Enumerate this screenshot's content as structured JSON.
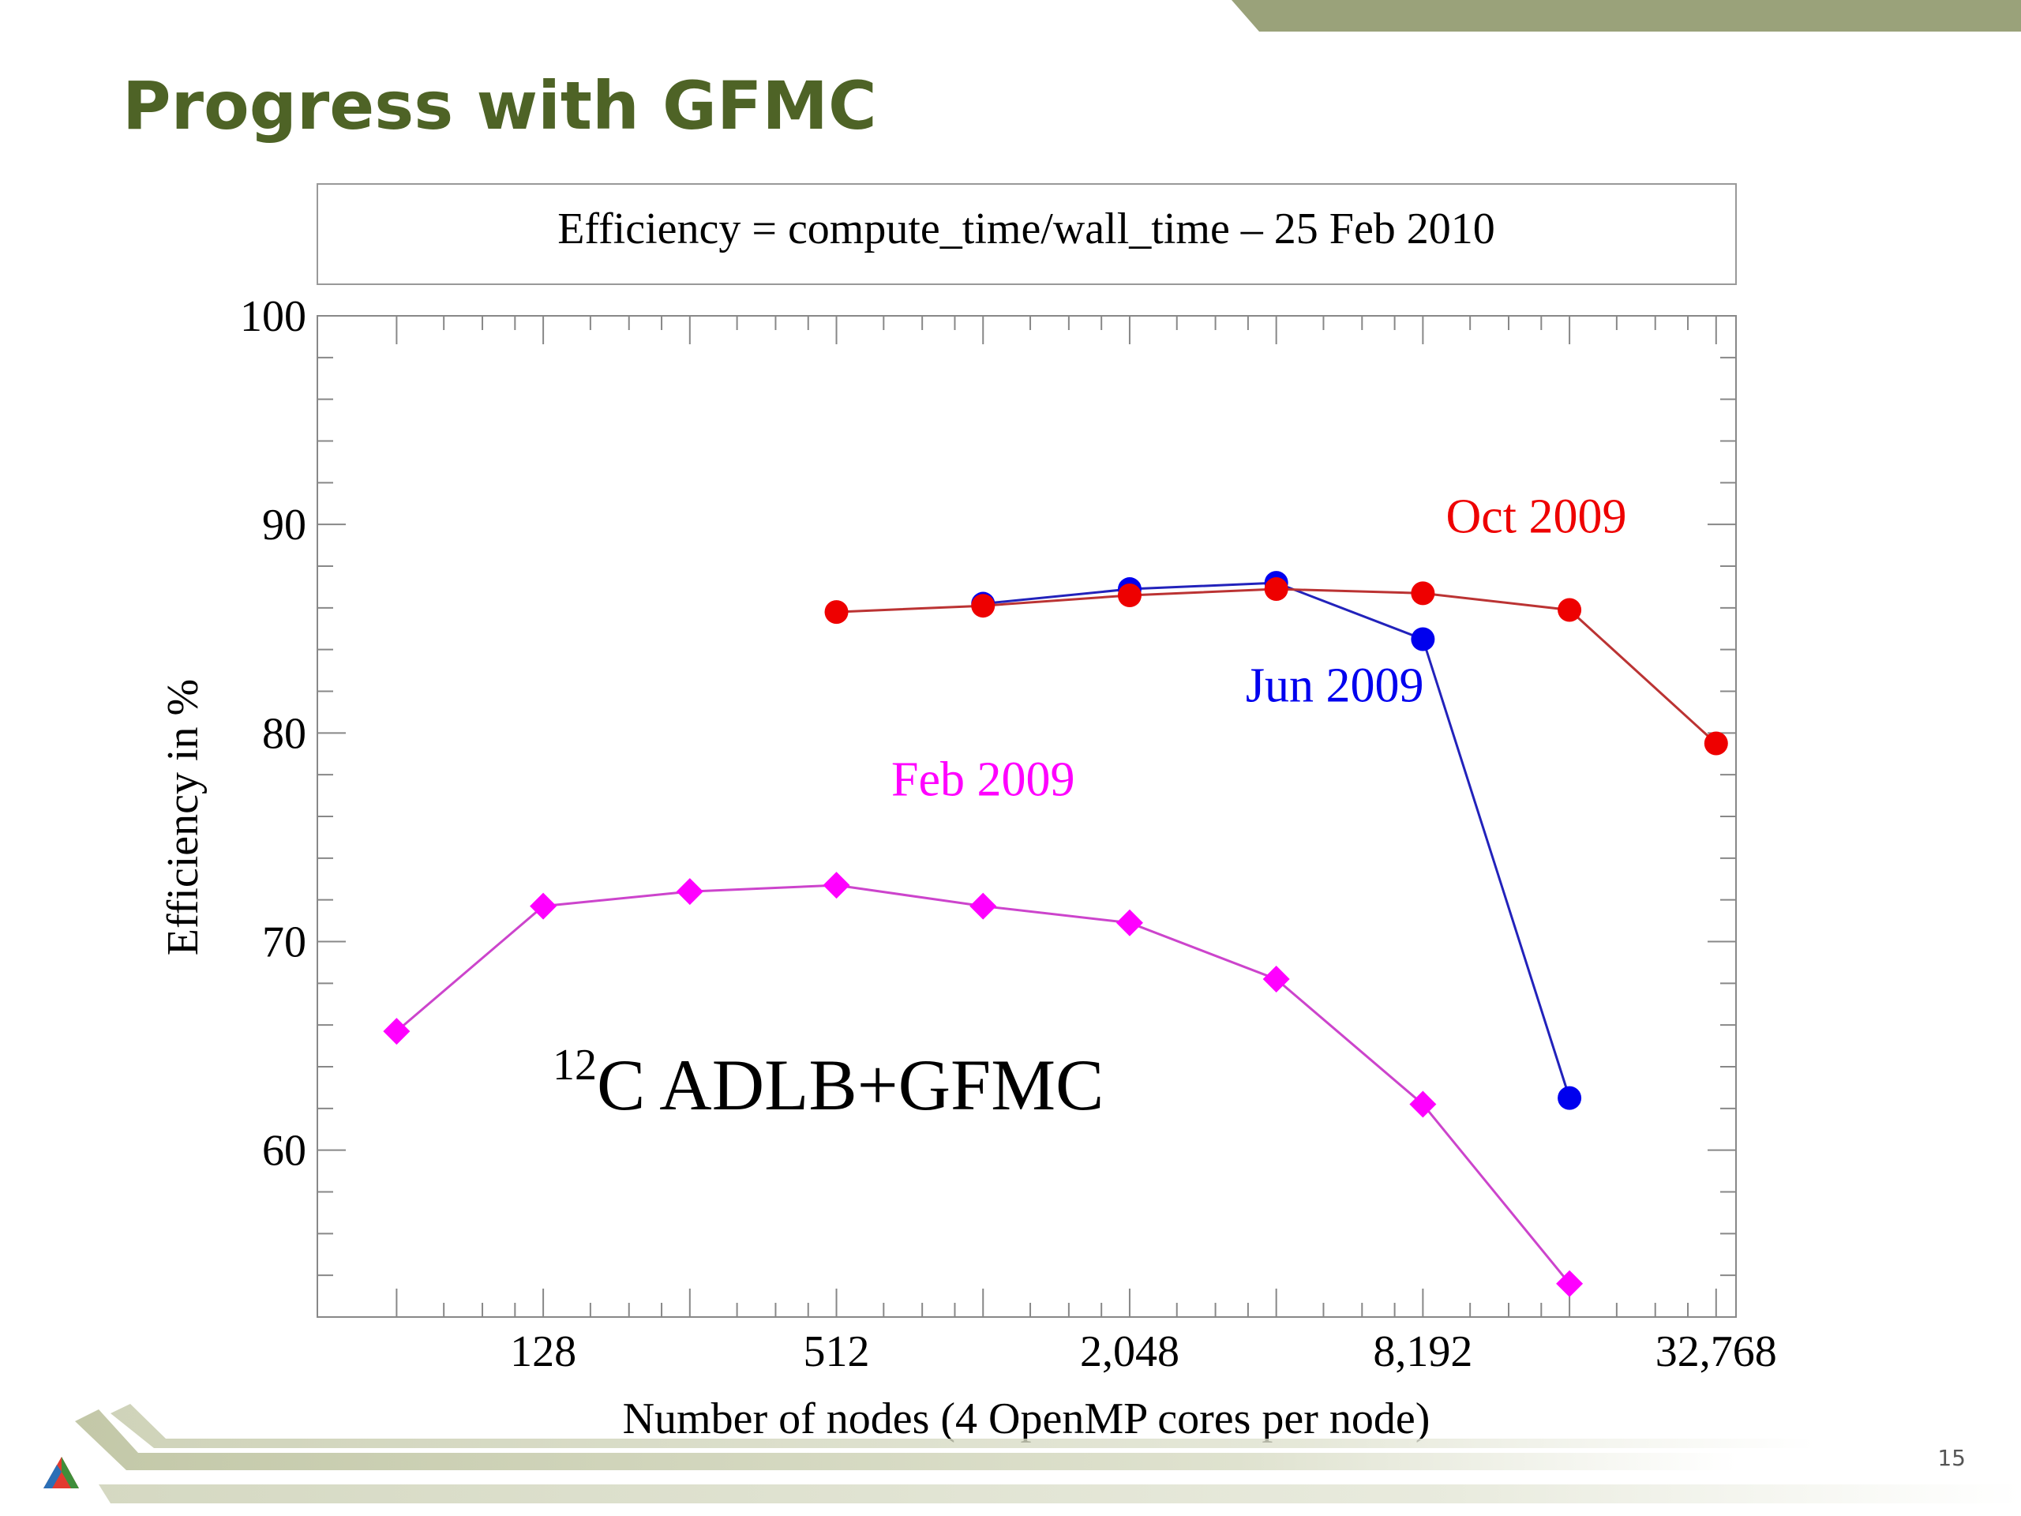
{
  "slide": {
    "title": "Progress with GFMC",
    "page_number": "15",
    "accent_color": "#4e6326",
    "band_color": "#9aa27a"
  },
  "chart_data": {
    "type": "line",
    "title": "Efficiency = compute_time/wall_time – 25 Feb 2010",
    "xlabel": "Number of nodes (4 OpenMP cores per node)",
    "ylabel": "Efficiency in %",
    "x_scale": "log2",
    "xlim": [
      44,
      36000
    ],
    "ylim": [
      52,
      100
    ],
    "x_ticks": [
      128,
      512,
      2048,
      8192,
      32768
    ],
    "x_tick_labels": [
      "128",
      "512",
      "2,048",
      "8,192",
      "32,768"
    ],
    "y_ticks": [
      60,
      70,
      80,
      90,
      100
    ],
    "y_tick_labels": [
      "60",
      "70",
      "80",
      "90",
      "100"
    ],
    "grid": false,
    "annotation": {
      "superscript": "12",
      "text": "C ADLB+GFMC"
    },
    "series": [
      {
        "name": "Feb 2009",
        "color": "#cc44cc",
        "marker_color": "#ff00ff",
        "marker": "diamond",
        "x": [
          64,
          128,
          256,
          512,
          1024,
          2048,
          4096,
          8192,
          16384
        ],
        "y": [
          65.7,
          71.7,
          72.4,
          72.7,
          71.7,
          70.9,
          68.2,
          62.2,
          53.6
        ]
      },
      {
        "name": "Jun 2009",
        "color": "#2222bb",
        "marker_color": "#0000ee",
        "marker": "circle",
        "x": [
          1024,
          2048,
          4096,
          8192,
          16384
        ],
        "y": [
          86.2,
          86.9,
          87.2,
          84.5,
          62.5
        ]
      },
      {
        "name": "Oct 2009",
        "color": "#bb3333",
        "marker_color": "#ee0000",
        "marker": "circle",
        "x": [
          512,
          1024,
          2048,
          4096,
          8192,
          16384,
          32768
        ],
        "y": [
          85.8,
          86.1,
          86.6,
          86.9,
          86.7,
          85.9,
          79.5
        ]
      }
    ]
  }
}
